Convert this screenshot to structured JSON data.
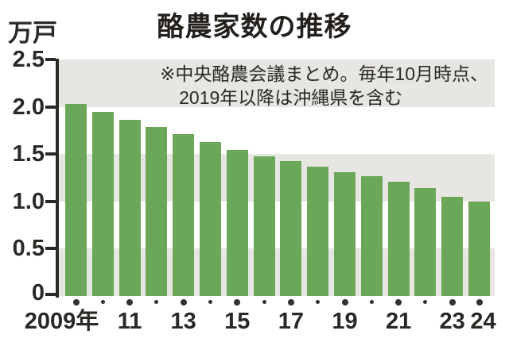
{
  "title": "酪農家数の推移",
  "unit_label": "万戸",
  "annotation": {
    "line1": "※中央酪農会議まとめ。毎年10月時点、",
    "line2": "2019年以降は沖縄県を含む"
  },
  "colors": {
    "bar_green": "#6ba758",
    "band_gray": "#e8e6e3",
    "ink": "#2b2926",
    "dot": "#35322e"
  },
  "chart_data": {
    "type": "bar",
    "title": "酪農家数の推移",
    "ylabel": "万戸",
    "ylim": [
      0,
      2.5
    ],
    "grid": "alternating-horizontal-bands",
    "grid_bands": [
      [
        2.0,
        2.5
      ],
      [
        1.0,
        1.5
      ],
      [
        0.0,
        0.5
      ]
    ],
    "y_tick_labels": [
      "2.5",
      "2.0",
      "1.5",
      "1.0",
      "0.5",
      "0"
    ],
    "categories": [
      "2009",
      "2010",
      "2011",
      "2012",
      "2013",
      "2014",
      "2015",
      "2016",
      "2017",
      "2018",
      "2019",
      "2020",
      "2021",
      "2022",
      "2023",
      "2024"
    ],
    "values": [
      2.03,
      1.95,
      1.86,
      1.79,
      1.71,
      1.63,
      1.54,
      1.48,
      1.43,
      1.37,
      1.31,
      1.27,
      1.21,
      1.14,
      1.05,
      1.0
    ],
    "x_tick_labels": [
      {
        "label": "2009年",
        "bar": 0,
        "dx": -18
      },
      {
        "label": "11",
        "bar": 2,
        "dx": 0
      },
      {
        "label": "13",
        "bar": 4,
        "dx": 0
      },
      {
        "label": "15",
        "bar": 6,
        "dx": 0
      },
      {
        "label": "17",
        "bar": 8,
        "dx": 0
      },
      {
        "label": "19",
        "bar": 10,
        "dx": 0
      },
      {
        "label": "21",
        "bar": 12,
        "dx": 0
      },
      {
        "label": "23",
        "bar": 14,
        "dx": 0
      },
      {
        "label": "24",
        "bar": 15,
        "dx": 5
      }
    ],
    "big_dot_indices": [
      0,
      2,
      4,
      6,
      8,
      10,
      12,
      14,
      15
    ]
  }
}
